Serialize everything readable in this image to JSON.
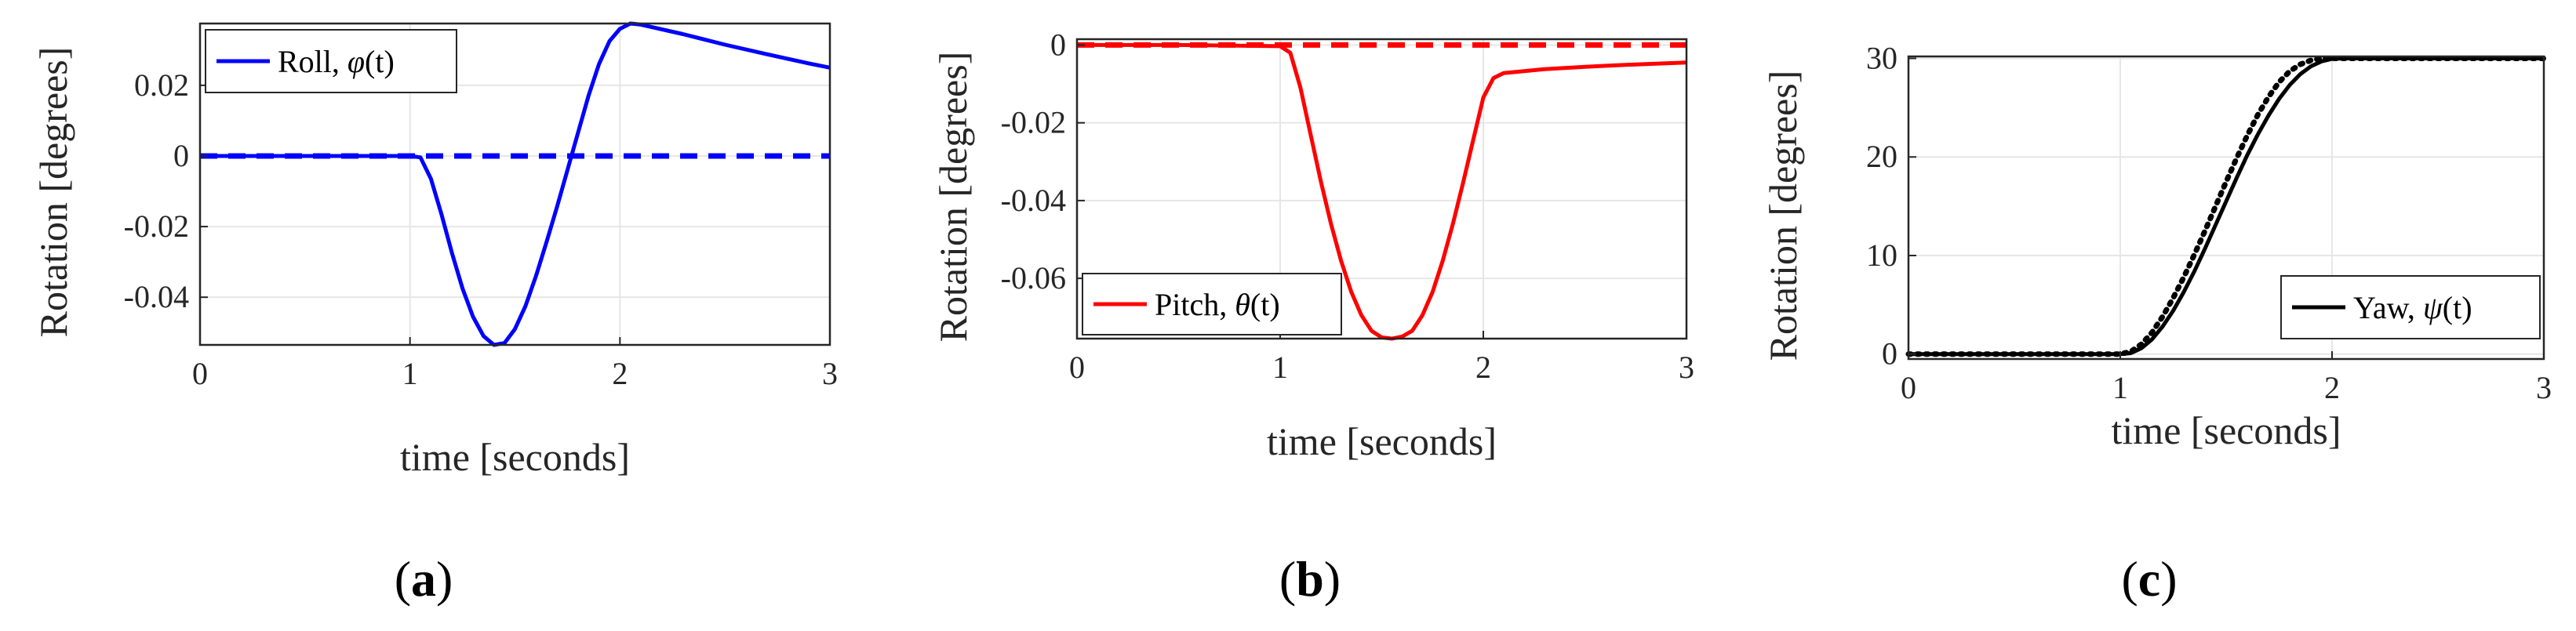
{
  "chart_data": [
    {
      "type": "line",
      "panel": "a",
      "caption_letter": "a",
      "xlabel": "time [seconds]",
      "ylabel": "Rotation [degrees]",
      "xlim": [
        0,
        3
      ],
      "ylim": [
        -0.0535,
        0.0375
      ],
      "xticks": [
        0,
        1,
        2,
        3
      ],
      "xtick_labels": [
        "0",
        "1",
        "2",
        "3"
      ],
      "yticks": [
        -0.04,
        -0.02,
        0,
        0.02
      ],
      "ytick_labels": [
        "-0.04",
        "-0.02",
        "0",
        "0.02"
      ],
      "legend": {
        "label_text": "Roll, ",
        "label_symbol": "φ",
        "label_arg": "(t)",
        "placement": "top-left"
      },
      "series": [
        {
          "name": "Roll, φ(t)",
          "color": "#0000ff",
          "style": "solid",
          "x": [
            0,
            0.5,
            1.0,
            1.05,
            1.1,
            1.15,
            1.2,
            1.25,
            1.3,
            1.35,
            1.4,
            1.45,
            1.5,
            1.55,
            1.6,
            1.65,
            1.7,
            1.75,
            1.8,
            1.85,
            1.9,
            1.95,
            2.0,
            2.05,
            2.1,
            2.3,
            2.5,
            2.7,
            2.9,
            3.0
          ],
          "y": [
            0,
            0,
            0,
            -0.0004,
            -0.0065,
            -0.0165,
            -0.0275,
            -0.0375,
            -0.0455,
            -0.051,
            -0.0535,
            -0.053,
            -0.049,
            -0.0425,
            -0.034,
            -0.0245,
            -0.0145,
            -0.004,
            0.0065,
            0.017,
            0.026,
            0.0325,
            0.036,
            0.0375,
            0.0372,
            0.0345,
            0.0315,
            0.0288,
            0.0262,
            0.025
          ]
        },
        {
          "name": "Roll reference",
          "color": "#0000ff",
          "style": "dashed",
          "x": [
            0,
            3
          ],
          "y": [
            0,
            0
          ]
        }
      ]
    },
    {
      "type": "line",
      "panel": "b",
      "caption_letter": "b",
      "xlabel": "time [seconds]",
      "ylabel": "Rotation [degrees]",
      "xlim": [
        0,
        3
      ],
      "ylim": [
        -0.0755,
        0.0015
      ],
      "xticks": [
        0,
        1,
        2,
        3
      ],
      "xtick_labels": [
        "0",
        "1",
        "2",
        "3"
      ],
      "yticks": [
        -0.06,
        -0.04,
        -0.02,
        0
      ],
      "ytick_labels": [
        "-0.06",
        "-0.04",
        "-0.02",
        "0"
      ],
      "legend": {
        "label_text": "Pitch, ",
        "label_symbol": "θ",
        "label_arg": "(t)",
        "placement": "bottom-left"
      },
      "series": [
        {
          "name": "Pitch, θ(t)",
          "color": "#ff0000",
          "style": "solid",
          "x": [
            0,
            0.5,
            1.0,
            1.05,
            1.1,
            1.15,
            1.2,
            1.25,
            1.3,
            1.35,
            1.4,
            1.45,
            1.5,
            1.55,
            1.6,
            1.65,
            1.7,
            1.75,
            1.8,
            1.85,
            1.9,
            1.95,
            2.0,
            2.05,
            2.1,
            2.3,
            2.5,
            2.7,
            2.9,
            3.0
          ],
          "y": [
            0,
            0,
            -0.0003,
            -0.002,
            -0.011,
            -0.023,
            -0.035,
            -0.046,
            -0.0555,
            -0.0635,
            -0.0695,
            -0.0735,
            -0.0752,
            -0.0755,
            -0.075,
            -0.0735,
            -0.0695,
            -0.0635,
            -0.0555,
            -0.046,
            -0.0355,
            -0.0245,
            -0.0135,
            -0.0085,
            -0.0072,
            -0.0062,
            -0.0056,
            -0.0051,
            -0.0047,
            -0.0045
          ]
        },
        {
          "name": "Pitch reference",
          "color": "#ff0000",
          "style": "dashed",
          "x": [
            0,
            3
          ],
          "y": [
            0,
            0
          ]
        }
      ]
    },
    {
      "type": "line",
      "panel": "c",
      "caption_letter": "c",
      "xlabel": "time [seconds]",
      "ylabel": "Rotation [degrees]",
      "xlim": [
        0,
        3
      ],
      "ylim": [
        -0.5,
        30.2
      ],
      "xticks": [
        0,
        1,
        2,
        3
      ],
      "xtick_labels": [
        "0",
        "1",
        "2",
        "3"
      ],
      "yticks": [
        0,
        10,
        20,
        30
      ],
      "ytick_labels": [
        "0",
        "10",
        "20",
        "30"
      ],
      "legend": {
        "label_text": "Yaw, ",
        "label_symbol": "ψ",
        "label_arg": "(t)",
        "placement": "bottom-right"
      },
      "series": [
        {
          "name": "Yaw, ψ(t)",
          "color": "#000000",
          "style": "solid",
          "x": [
            0,
            0.5,
            1.0,
            1.05,
            1.1,
            1.15,
            1.2,
            1.25,
            1.3,
            1.35,
            1.4,
            1.45,
            1.5,
            1.55,
            1.6,
            1.65,
            1.7,
            1.75,
            1.8,
            1.85,
            1.9,
            1.95,
            2.0,
            2.05,
            2.1,
            2.5,
            3.0
          ],
          "y": [
            0,
            0,
            0,
            0.1,
            0.6,
            1.5,
            2.8,
            4.4,
            6.3,
            8.4,
            10.7,
            13.1,
            15.5,
            17.9,
            20.2,
            22.3,
            24.2,
            25.9,
            27.3,
            28.4,
            29.2,
            29.7,
            29.95,
            30,
            30,
            30,
            30
          ]
        },
        {
          "name": "Yaw reference",
          "color": "#000000",
          "style": "dotted",
          "x": [
            0,
            0.5,
            1.0,
            1.05,
            1.1,
            1.15,
            1.2,
            1.25,
            1.3,
            1.35,
            1.4,
            1.45,
            1.5,
            1.55,
            1.6,
            1.65,
            1.7,
            1.75,
            1.8,
            1.85,
            1.9,
            1.95,
            2.0,
            2.05,
            2.1,
            2.5,
            3.0
          ],
          "y": [
            0,
            0,
            0,
            0.25,
            1.0,
            2.2,
            3.8,
            5.7,
            7.8,
            10.1,
            12.5,
            15.0,
            17.5,
            19.9,
            22.2,
            24.3,
            26.1,
            27.6,
            28.7,
            29.4,
            29.8,
            30,
            30,
            30,
            30,
            30,
            30
          ]
        }
      ]
    }
  ]
}
